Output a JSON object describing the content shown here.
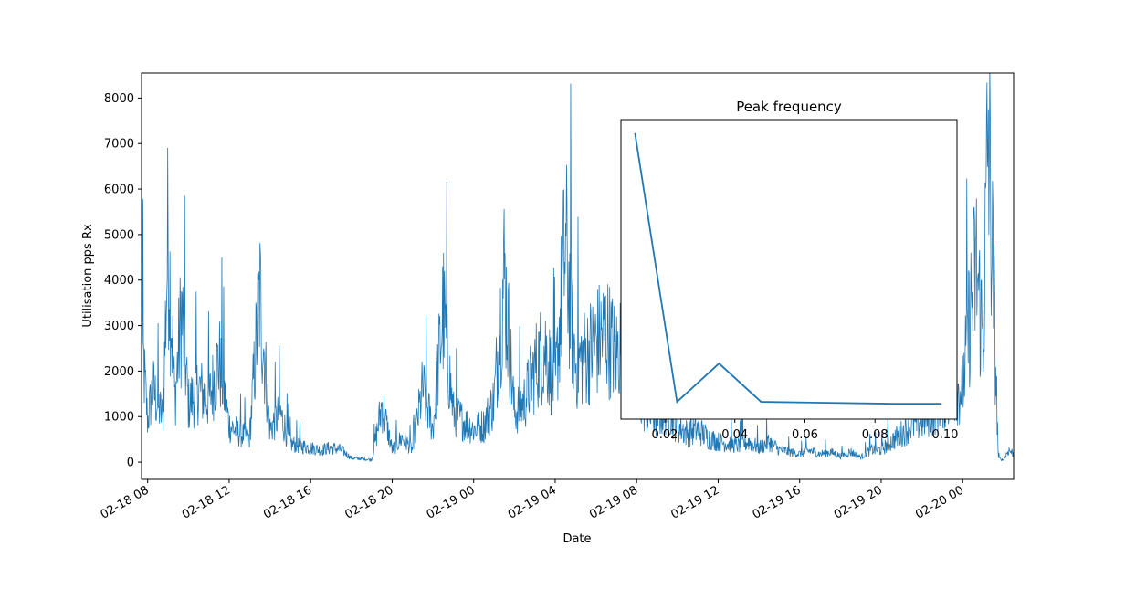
{
  "chart_data": [
    {
      "type": "line",
      "title": "",
      "xlabel": "Date",
      "ylabel": "Utilisation pps Rx",
      "x_is_time": true,
      "xlim": [
        "2018-02-18T07:42:00",
        "2018-02-20T02:30:00"
      ],
      "ylim": [
        -380,
        8550
      ],
      "grid": false,
      "line_color": "#1f77b4",
      "x_ticks": [
        "2018-02-18T08:00:00",
        "2018-02-18T12:00:00",
        "2018-02-18T16:00:00",
        "2018-02-18T20:00:00",
        "2018-02-19T00:00:00",
        "2018-02-19T04:00:00",
        "2018-02-19T08:00:00",
        "2018-02-19T12:00:00",
        "2018-02-19T16:00:00",
        "2018-02-19T20:00:00",
        "2018-02-20T00:00:00"
      ],
      "x_tick_labels": [
        "02-18 08",
        "02-18 12",
        "02-18 16",
        "02-18 20",
        "02-19 00",
        "02-19 04",
        "02-19 08",
        "02-19 12",
        "02-19 16",
        "02-19 20",
        "02-20 00"
      ],
      "y_ticks": [
        0,
        1000,
        2000,
        3000,
        4000,
        5000,
        6000,
        7000,
        8000
      ],
      "y_tick_labels": [
        "0",
        "1000",
        "2000",
        "3000",
        "4000",
        "5000",
        "6000",
        "7000",
        "8000"
      ],
      "series": [
        {
          "x": [
            "2018-02-18T07:42:00",
            "2018-02-18T08:00:00",
            "2018-02-18T08:15:00",
            "2018-02-18T08:30:00",
            "2018-02-18T08:45:00",
            "2018-02-18T09:00:00",
            "2018-02-18T09:20:00",
            "2018-02-18T09:40:00",
            "2018-02-18T10:00:00",
            "2018-02-18T10:30:00",
            "2018-02-18T11:00:00",
            "2018-02-18T11:30:00",
            "2018-02-18T12:00:00",
            "2018-02-18T12:30:00",
            "2018-02-18T13:00:00",
            "2018-02-18T13:30:00",
            "2018-02-18T14:00:00",
            "2018-02-18T14:30:00",
            "2018-02-18T15:00:00",
            "2018-02-18T15:30:00",
            "2018-02-18T16:00:00",
            "2018-02-18T16:30:00",
            "2018-02-18T17:00:00",
            "2018-02-18T17:30:00",
            "2018-02-18T18:00:00",
            "2018-02-18T18:30:00",
            "2018-02-18T19:00:00",
            "2018-02-18T19:30:00",
            "2018-02-18T20:00:00",
            "2018-02-18T20:30:00",
            "2018-02-18T21:00:00",
            "2018-02-18T21:30:00",
            "2018-02-18T22:00:00",
            "2018-02-18T22:30:00",
            "2018-02-18T23:00:00",
            "2018-02-18T23:30:00",
            "2018-02-19T00:00:00",
            "2018-02-19T00:30:00",
            "2018-02-19T01:00:00",
            "2018-02-19T01:30:00",
            "2018-02-19T02:00:00",
            "2018-02-19T02:30:00",
            "2018-02-19T03:00:00",
            "2018-02-19T03:30:00",
            "2018-02-19T04:00:00",
            "2018-02-19T04:30:00",
            "2018-02-19T05:00:00",
            "2018-02-19T05:30:00",
            "2018-02-19T06:00:00",
            "2018-02-19T06:30:00",
            "2018-02-19T07:00:00",
            "2018-02-19T07:30:00",
            "2018-02-19T08:00:00",
            "2018-02-19T08:30:00",
            "2018-02-19T09:00:00",
            "2018-02-19T09:30:00",
            "2018-02-19T10:00:00",
            "2018-02-19T10:30:00",
            "2018-02-19T11:00:00",
            "2018-02-19T11:30:00",
            "2018-02-19T12:00:00",
            "2018-02-19T12:30:00",
            "2018-02-19T13:00:00",
            "2018-02-19T13:30:00",
            "2018-02-19T14:00:00",
            "2018-02-19T14:30:00",
            "2018-02-19T15:00:00",
            "2018-02-19T15:30:00",
            "2018-02-19T16:00:00",
            "2018-02-19T16:30:00",
            "2018-02-19T17:00:00",
            "2018-02-19T17:30:00",
            "2018-02-19T18:00:00",
            "2018-02-19T18:30:00",
            "2018-02-19T19:00:00",
            "2018-02-19T19:30:00",
            "2018-02-19T20:00:00",
            "2018-02-19T20:30:00",
            "2018-02-19T21:00:00",
            "2018-02-19T21:30:00",
            "2018-02-19T22:00:00",
            "2018-02-19T22:30:00",
            "2018-02-19T23:00:00",
            "2018-02-19T23:30:00",
            "2018-02-20T00:00:00",
            "2018-02-20T00:20:00",
            "2018-02-20T00:40:00",
            "2018-02-20T01:00:00",
            "2018-02-20T01:15:00",
            "2018-02-20T01:30:00",
            "2018-02-20T01:45:00",
            "2018-02-20T02:00:00",
            "2018-02-20T02:15:00",
            "2018-02-20T02:30:00"
          ],
          "y": [
            3100,
            1000,
            1800,
            1400,
            1100,
            5600,
            1500,
            3700,
            1400,
            1800,
            1500,
            2500,
            900,
            700,
            600,
            4100,
            800,
            1200,
            450,
            400,
            350,
            300,
            350,
            300,
            100,
            80,
            60,
            1400,
            300,
            600,
            300,
            1800,
            800,
            3700,
            1200,
            1000,
            800,
            900,
            1500,
            4600,
            1200,
            1500,
            2300,
            2800,
            1800,
            5300,
            2400,
            2600,
            2900,
            3200,
            2600,
            3400,
            1800,
            1200,
            1100,
            1300,
            900,
            700,
            800,
            600,
            500,
            450,
            400,
            500,
            350,
            500,
            300,
            250,
            200,
            280,
            200,
            250,
            150,
            250,
            120,
            300,
            300,
            500,
            700,
            900,
            1000,
            1200,
            1500,
            1700,
            1800,
            3500,
            4800,
            3000,
            8100,
            4400,
            100,
            50,
            300,
            200
          ]
        }
      ]
    },
    {
      "type": "line",
      "title": "Peak frequency",
      "xlabel": "",
      "ylabel": "",
      "xlim": [
        0.0075,
        0.1034
      ],
      "ylim": [
        1.0,
        8.8
      ],
      "grid": false,
      "line_color": "#1f77b4",
      "x_ticks": [
        0.02,
        0.04,
        0.06,
        0.08,
        0.1
      ],
      "x_tick_labels": [
        "0.02",
        "0.04",
        "0.06",
        "0.08",
        "0.10"
      ],
      "y_ticks": [],
      "y_tick_labels": [],
      "series": [
        {
          "x": [
            0.0115,
            0.0235,
            0.0355,
            0.0475,
            0.0855,
            0.099
          ],
          "y": [
            8.45,
            1.45,
            2.45,
            1.45,
            1.4,
            1.4
          ]
        }
      ]
    }
  ]
}
